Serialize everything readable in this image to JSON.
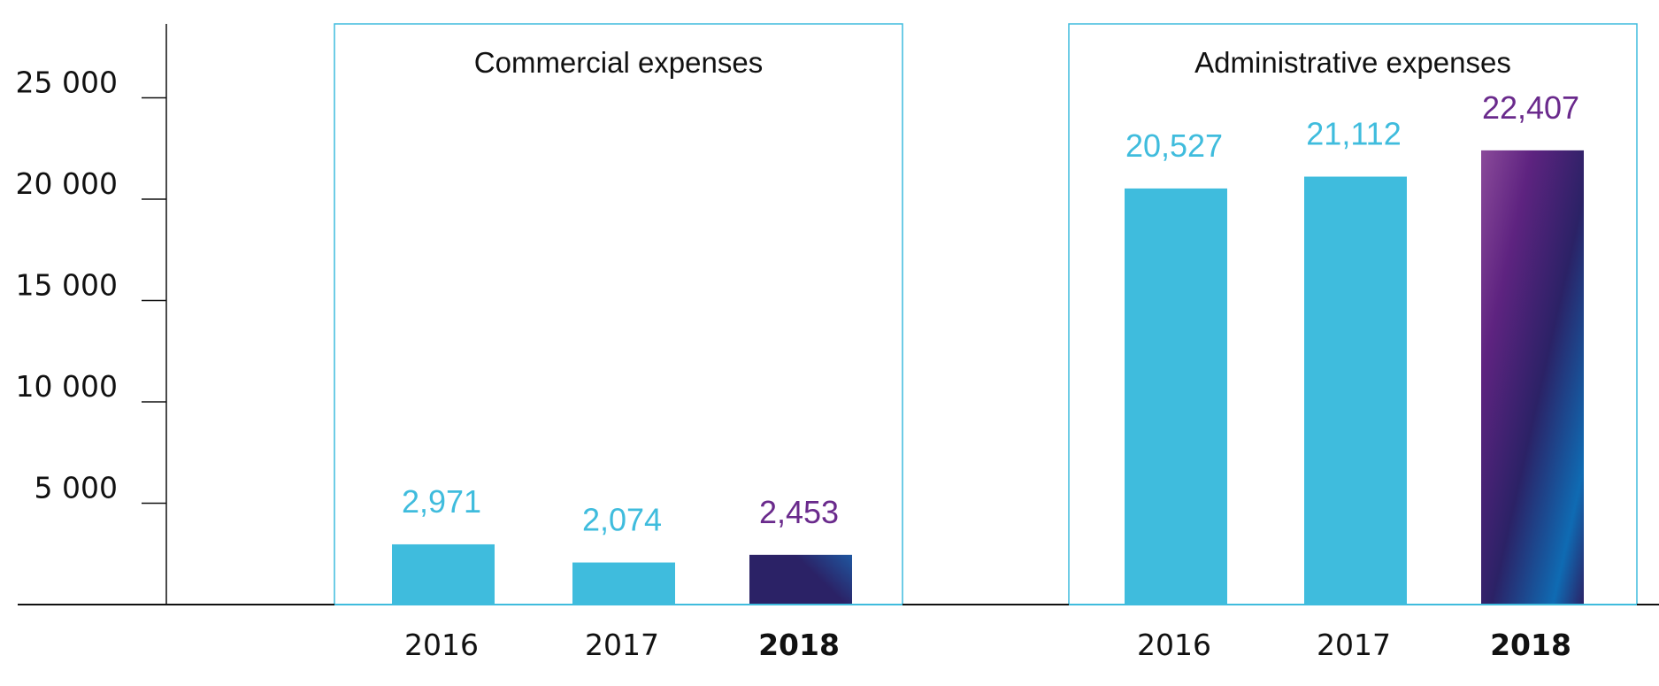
{
  "chart_data": {
    "type": "bar",
    "title": "",
    "xlabel": "",
    "ylabel": "",
    "ylim": [
      0,
      28000
    ],
    "y_ticks": [
      {
        "value": 5000,
        "label": "5 000"
      },
      {
        "value": 10000,
        "label": "10 000"
      },
      {
        "value": 15000,
        "label": "15 000"
      },
      {
        "value": 20000,
        "label": "20 000"
      },
      {
        "value": 25000,
        "label": "25 000"
      }
    ],
    "grid": false,
    "colors": {
      "regular_bar": "#3FBCDD",
      "regular_label": "#3FBCDD",
      "highlight_label": "#6A2A8C",
      "highlight_gradient_start": "#7B3A92",
      "highlight_gradient_mid": "#2B2266",
      "highlight_gradient_end": "#0F6BB3",
      "panel_border": "#3FBCDD",
      "axis": "#111111"
    },
    "panels": [
      {
        "title": "Commercial expenses",
        "categories": [
          "2016",
          "2017",
          "2018"
        ],
        "values": [
          2971,
          2074,
          2453
        ],
        "value_labels": [
          "2,971",
          "2,074",
          "2,453"
        ],
        "highlight_index": 2
      },
      {
        "title": "Administrative expenses",
        "categories": [
          "2016",
          "2017",
          "2018"
        ],
        "values": [
          20527,
          21112,
          22407
        ],
        "value_labels": [
          "20,527",
          "21,112",
          "22,407"
        ],
        "highlight_index": 2
      }
    ]
  }
}
